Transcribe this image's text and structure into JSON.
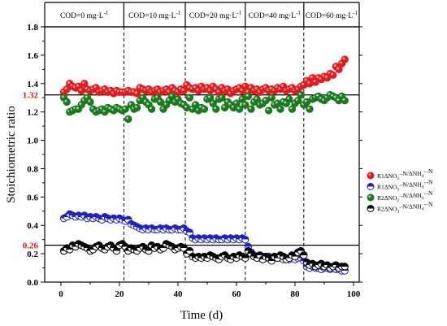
{
  "chart_data": {
    "type": "scatter",
    "xlabel": "Time (d)",
    "ylabel": "Stoichiometric ratio",
    "xlim": [
      -5,
      100
    ],
    "ylim": [
      0.0,
      1.8
    ],
    "xticks": [
      "0",
      "20",
      "40",
      "60",
      "80",
      "100"
    ],
    "yticks": [
      "0.0",
      "0.2",
      "0.4",
      "0.6",
      "0.8",
      "1.0",
      "1.2",
      "1.4",
      "1.6",
      "1.8"
    ],
    "reference_lines": [
      {
        "value": 1.32,
        "label": "1.32",
        "color": "#e41a1c"
      },
      {
        "value": 0.26,
        "label": "0.26",
        "color": "#e41a1c"
      }
    ],
    "phase_boundaries": [
      21.5,
      42.5,
      63,
      83
    ],
    "phases": [
      {
        "prefix": "COD=0 mg·L",
        "sup": "-1"
      },
      {
        "prefix": "COD=10 mg·L",
        "sup": "-1"
      },
      {
        "prefix": "COD=20 mg·L",
        "sup": "-1"
      },
      {
        "prefix": "COD=40 mg·L",
        "sup": "-1"
      },
      {
        "prefix": "COD=60 mg·L",
        "sup": "-1"
      }
    ],
    "legend_position": "right",
    "series": [
      {
        "name": "R1ΔNO2⁻-N/ΔNH4⁺-N",
        "legend_parts": [
          [
            "R1ΔNO",
            ""
          ],
          [
            "2",
            "sub"
          ],
          [
            "-",
            "sup"
          ],
          [
            "-N/ΔNH",
            ""
          ],
          [
            "4",
            "sub"
          ],
          [
            "+",
            "sup"
          ],
          [
            "-N",
            ""
          ]
        ],
        "color": "#e41a1c",
        "marker": "filled",
        "x": [
          1,
          2,
          3,
          4,
          5,
          6,
          7,
          8,
          9,
          10,
          11,
          12,
          13,
          14,
          15,
          16,
          17,
          18,
          19,
          20,
          21,
          22,
          23,
          24,
          25,
          26,
          27,
          28,
          29,
          30,
          31,
          32,
          33,
          34,
          35,
          36,
          37,
          38,
          39,
          40,
          41,
          42,
          43,
          44,
          45,
          46,
          47,
          48,
          49,
          50,
          51,
          52,
          53,
          54,
          55,
          56,
          57,
          58,
          59,
          60,
          61,
          62,
          63,
          64,
          65,
          66,
          67,
          68,
          69,
          70,
          71,
          72,
          73,
          74,
          75,
          76,
          77,
          78,
          79,
          80,
          81,
          82,
          83,
          84,
          85,
          86,
          87,
          88,
          89,
          90,
          91,
          92,
          93,
          94,
          95,
          96,
          97
        ],
        "y": [
          1.34,
          1.36,
          1.4,
          1.38,
          1.37,
          1.38,
          1.35,
          1.4,
          1.36,
          1.35,
          1.36,
          1.37,
          1.34,
          1.35,
          1.36,
          1.34,
          1.35,
          1.33,
          1.35,
          1.34,
          1.34,
          1.34,
          1.35,
          1.34,
          1.34,
          1.33,
          1.37,
          1.36,
          1.35,
          1.36,
          1.34,
          1.35,
          1.36,
          1.34,
          1.35,
          1.36,
          1.34,
          1.37,
          1.35,
          1.34,
          1.36,
          1.35,
          1.39,
          1.37,
          1.36,
          1.37,
          1.35,
          1.38,
          1.36,
          1.37,
          1.35,
          1.38,
          1.36,
          1.34,
          1.37,
          1.35,
          1.36,
          1.33,
          1.35,
          1.36,
          1.37,
          1.35,
          1.38,
          1.34,
          1.37,
          1.35,
          1.36,
          1.34,
          1.36,
          1.37,
          1.35,
          1.36,
          1.35,
          1.37,
          1.36,
          1.38,
          1.35,
          1.36,
          1.37,
          1.35,
          1.36,
          1.38,
          1.39,
          1.42,
          1.4,
          1.44,
          1.41,
          1.44,
          1.43,
          1.45,
          1.44,
          1.47,
          1.46,
          1.52,
          1.5,
          1.54,
          1.57
        ]
      },
      {
        "name": "R1ΔNO3⁻-N/ΔNH4⁺-N",
        "legend_parts": [
          [
            "R1ΔNO",
            ""
          ],
          [
            "3",
            "sub"
          ],
          [
            "-",
            "sup"
          ],
          [
            "-N/ΔNH",
            ""
          ],
          [
            "4",
            "sub"
          ],
          [
            "+",
            "sup"
          ],
          [
            "-N",
            ""
          ]
        ],
        "color": "#1f22c8",
        "marker": "half",
        "x": [
          1,
          2,
          3,
          4,
          5,
          6,
          7,
          8,
          9,
          10,
          11,
          12,
          13,
          14,
          15,
          16,
          17,
          18,
          19,
          20,
          21,
          22,
          23,
          24,
          25,
          26,
          27,
          28,
          29,
          30,
          31,
          32,
          33,
          34,
          35,
          36,
          37,
          38,
          39,
          40,
          41,
          42,
          43,
          44,
          45,
          46,
          47,
          48,
          49,
          50,
          51,
          52,
          53,
          54,
          55,
          56,
          57,
          58,
          59,
          60,
          61,
          62,
          63,
          64,
          65,
          66,
          67,
          68,
          69,
          70,
          71,
          72,
          73,
          74,
          75,
          76,
          77,
          78,
          79,
          80,
          81,
          82,
          83,
          84,
          85,
          86,
          87,
          88,
          89,
          90,
          91,
          92,
          93,
          94,
          95,
          96,
          97
        ],
        "y": [
          0.45,
          0.46,
          0.48,
          0.47,
          0.46,
          0.47,
          0.46,
          0.47,
          0.45,
          0.46,
          0.45,
          0.46,
          0.45,
          0.44,
          0.46,
          0.45,
          0.44,
          0.45,
          0.44,
          0.45,
          0.44,
          0.43,
          0.44,
          0.41,
          0.4,
          0.39,
          0.38,
          0.37,
          0.38,
          0.37,
          0.38,
          0.37,
          0.37,
          0.38,
          0.37,
          0.38,
          0.37,
          0.37,
          0.38,
          0.37,
          0.37,
          0.38,
          0.36,
          0.35,
          0.31,
          0.3,
          0.31,
          0.3,
          0.31,
          0.3,
          0.31,
          0.3,
          0.31,
          0.3,
          0.3,
          0.31,
          0.3,
          0.31,
          0.3,
          0.31,
          0.3,
          0.31,
          0.3,
          0.25,
          0.21,
          0.19,
          0.18,
          0.17,
          0.18,
          0.17,
          0.18,
          0.17,
          0.18,
          0.17,
          0.17,
          0.16,
          0.17,
          0.16,
          0.17,
          0.16,
          0.17,
          0.17,
          0.15,
          0.11,
          0.1,
          0.11,
          0.1,
          0.1,
          0.09,
          0.1,
          0.1,
          0.09,
          0.1,
          0.09,
          0.09,
          0.08,
          0.08
        ]
      },
      {
        "name": "R2ΔNO2⁻-N/ΔNH4⁺-N",
        "legend_parts": [
          [
            "R2ΔNO",
            ""
          ],
          [
            "2",
            "sub"
          ],
          [
            "-",
            "sup"
          ],
          [
            "-N/ΔNH",
            ""
          ],
          [
            "4",
            "sub"
          ],
          [
            "+",
            "sup"
          ],
          [
            "-N",
            ""
          ]
        ],
        "color": "#1a7a1e",
        "marker": "filled",
        "x": [
          1,
          2,
          3,
          4,
          5,
          6,
          7,
          8,
          9,
          10,
          11,
          12,
          13,
          14,
          15,
          16,
          17,
          18,
          19,
          20,
          21,
          22,
          23,
          24,
          25,
          26,
          27,
          28,
          29,
          30,
          31,
          32,
          33,
          34,
          35,
          36,
          37,
          38,
          39,
          40,
          41,
          42,
          43,
          44,
          45,
          46,
          47,
          48,
          49,
          50,
          51,
          52,
          53,
          54,
          55,
          56,
          57,
          58,
          59,
          60,
          61,
          62,
          63,
          64,
          65,
          66,
          67,
          68,
          69,
          70,
          71,
          72,
          73,
          74,
          75,
          76,
          77,
          78,
          79,
          80,
          81,
          82,
          83,
          84,
          85,
          86,
          87,
          88,
          89,
          90,
          91,
          92,
          93,
          94,
          95,
          96,
          97
        ],
        "y": [
          1.3,
          1.27,
          1.2,
          1.21,
          1.22,
          1.22,
          1.25,
          1.28,
          1.3,
          1.27,
          1.22,
          1.2,
          1.21,
          1.22,
          1.2,
          1.23,
          1.22,
          1.21,
          1.23,
          1.22,
          1.21,
          1.22,
          1.15,
          1.25,
          1.22,
          1.23,
          1.28,
          1.3,
          1.27,
          1.25,
          1.22,
          1.29,
          1.3,
          1.27,
          1.22,
          1.25,
          1.28,
          1.31,
          1.27,
          1.29,
          1.26,
          1.25,
          1.23,
          1.3,
          1.22,
          1.25,
          1.21,
          1.23,
          1.22,
          1.29,
          1.3,
          1.26,
          1.22,
          1.29,
          1.3,
          1.23,
          1.27,
          1.25,
          1.23,
          1.26,
          1.22,
          1.29,
          1.25,
          1.31,
          1.22,
          1.27,
          1.29,
          1.25,
          1.26,
          1.28,
          1.21,
          1.3,
          1.25,
          1.26,
          1.22,
          1.27,
          1.26,
          1.29,
          1.22,
          1.26,
          1.28,
          1.32,
          1.25,
          1.27,
          1.22,
          1.29,
          1.3,
          1.31,
          1.29,
          1.28,
          1.3,
          1.32,
          1.31,
          1.3,
          1.28,
          1.31,
          1.28
        ]
      },
      {
        "name": "R2ΔNO3⁻-N/ΔNH4⁺-N",
        "legend_parts": [
          [
            "R2ΔNO",
            ""
          ],
          [
            "3",
            "sub"
          ],
          [
            "-",
            "sup"
          ],
          [
            "-N/ΔNH",
            ""
          ],
          [
            "4",
            "sub"
          ],
          [
            "+",
            "sup"
          ],
          [
            "-N",
            ""
          ]
        ],
        "color": "#000000",
        "marker": "half",
        "x": [
          1,
          2,
          3,
          4,
          5,
          6,
          7,
          8,
          9,
          10,
          11,
          12,
          13,
          14,
          15,
          16,
          17,
          18,
          19,
          20,
          21,
          22,
          23,
          24,
          25,
          26,
          27,
          28,
          29,
          30,
          31,
          32,
          33,
          34,
          35,
          36,
          37,
          38,
          39,
          40,
          41,
          42,
          43,
          44,
          45,
          46,
          47,
          48,
          49,
          50,
          51,
          52,
          53,
          54,
          55,
          56,
          57,
          58,
          59,
          60,
          61,
          62,
          63,
          64,
          65,
          66,
          67,
          68,
          69,
          70,
          71,
          72,
          73,
          74,
          75,
          76,
          77,
          78,
          79,
          80,
          81,
          82,
          83,
          84,
          85,
          86,
          87,
          88,
          89,
          90,
          91,
          92,
          93,
          94,
          95,
          96,
          97
        ],
        "y": [
          0.22,
          0.24,
          0.23,
          0.26,
          0.25,
          0.27,
          0.26,
          0.25,
          0.24,
          0.22,
          0.23,
          0.25,
          0.26,
          0.24,
          0.23,
          0.25,
          0.26,
          0.24,
          0.22,
          0.26,
          0.27,
          0.25,
          0.22,
          0.24,
          0.23,
          0.22,
          0.24,
          0.25,
          0.23,
          0.22,
          0.26,
          0.24,
          0.25,
          0.23,
          0.24,
          0.27,
          0.26,
          0.25,
          0.23,
          0.24,
          0.25,
          0.24,
          0.2,
          0.22,
          0.18,
          0.17,
          0.18,
          0.17,
          0.18,
          0.17,
          0.19,
          0.18,
          0.17,
          0.16,
          0.18,
          0.19,
          0.17,
          0.16,
          0.18,
          0.17,
          0.19,
          0.18,
          0.17,
          0.22,
          0.2,
          0.18,
          0.17,
          0.19,
          0.16,
          0.18,
          0.17,
          0.15,
          0.18,
          0.17,
          0.19,
          0.18,
          0.16,
          0.17,
          0.19,
          0.18,
          0.21,
          0.22,
          0.19,
          0.14,
          0.12,
          0.13,
          0.11,
          0.12,
          0.13,
          0.11,
          0.12,
          0.1,
          0.11,
          0.12,
          0.1,
          0.11,
          0.11
        ]
      }
    ]
  }
}
